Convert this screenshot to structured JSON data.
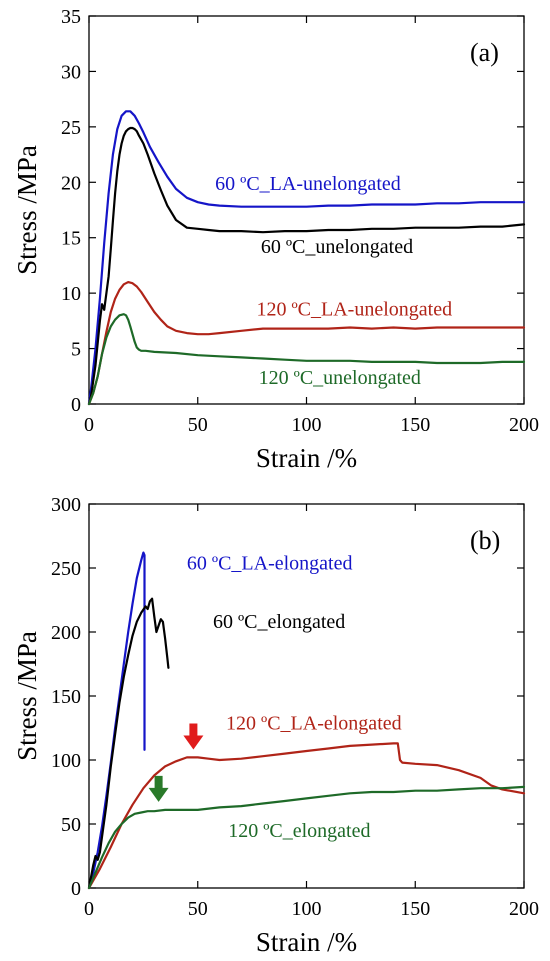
{
  "chart_data": [
    {
      "type": "line",
      "panel_label": "(a)",
      "xlabel": "Strain /%",
      "ylabel": "Stress /MPa",
      "xlim": [
        0,
        200
      ],
      "ylim": [
        0,
        35
      ],
      "xticks": [
        "0",
        "50",
        "100",
        "150",
        "200"
      ],
      "yticks": [
        "0",
        "5",
        "10",
        "15",
        "20",
        "25",
        "30",
        "35"
      ],
      "grid": false,
      "series": [
        {
          "name": "60 ºC_LA-unelongated",
          "color": "#1515c8",
          "x": [
            0,
            1,
            3,
            5,
            7,
            9,
            11,
            13,
            15,
            17,
            19,
            21,
            23,
            25,
            28,
            32,
            36,
            40,
            45,
            50,
            55,
            60,
            70,
            80,
            90,
            100,
            110,
            120,
            130,
            140,
            150,
            160,
            170,
            180,
            190,
            200
          ],
          "y": [
            0,
            1.5,
            5,
            9.5,
            14.5,
            19,
            22.5,
            24.8,
            26,
            26.4,
            26.4,
            26,
            25.3,
            24.5,
            23.2,
            21.8,
            20.5,
            19.4,
            18.6,
            18.2,
            18.0,
            17.9,
            17.8,
            17.8,
            17.8,
            17.8,
            17.9,
            17.9,
            18.0,
            18.0,
            18.0,
            18.1,
            18.1,
            18.2,
            18.2,
            18.2
          ]
        },
        {
          "name": "60 ºC_unelongated",
          "color": "#000000",
          "x": [
            0,
            1,
            3,
            5,
            6,
            7,
            8,
            9,
            10,
            11,
            12,
            13,
            14,
            15,
            16,
            17,
            18,
            19,
            20,
            21,
            22,
            23,
            25,
            27,
            30,
            33,
            36,
            40,
            45,
            50,
            55,
            60,
            70,
            80,
            90,
            100,
            110,
            120,
            130,
            140,
            150,
            160,
            170,
            180,
            190,
            200
          ],
          "y": [
            0,
            0.8,
            3.5,
            7.5,
            9,
            8.5,
            10,
            11.5,
            14,
            16.5,
            19,
            21,
            22.5,
            23.5,
            24.2,
            24.6,
            24.8,
            24.9,
            24.9,
            24.8,
            24.6,
            24.2,
            23.5,
            22.5,
            20.8,
            19.3,
            17.9,
            16.6,
            15.9,
            15.8,
            15.7,
            15.6,
            15.6,
            15.5,
            15.6,
            15.6,
            15.7,
            15.7,
            15.8,
            15.8,
            15.9,
            15.9,
            15.9,
            16.0,
            16.0,
            16.2
          ]
        },
        {
          "name": "120 ºC_LA-unelongated",
          "color": "#b02418",
          "x": [
            0,
            2,
            4,
            6,
            8,
            10,
            12,
            14,
            16,
            18,
            20,
            22,
            24,
            27,
            30,
            33,
            36,
            40,
            45,
            50,
            55,
            60,
            70,
            80,
            90,
            100,
            110,
            120,
            130,
            140,
            150,
            160,
            170,
            180,
            190,
            200
          ],
          "y": [
            0,
            1,
            2.5,
            4.5,
            6.5,
            8.3,
            9.5,
            10.3,
            10.8,
            11.0,
            10.9,
            10.6,
            10.1,
            9.2,
            8.3,
            7.6,
            7.0,
            6.6,
            6.4,
            6.3,
            6.3,
            6.4,
            6.6,
            6.8,
            6.8,
            6.8,
            6.8,
            6.9,
            6.8,
            6.9,
            6.8,
            6.9,
            6.9,
            6.9,
            6.9,
            6.9
          ]
        },
        {
          "name": "120 ºC_unelongated",
          "color": "#1e6a28",
          "x": [
            0,
            2,
            4,
            6,
            8,
            10,
            12,
            14,
            16,
            17,
            18,
            19,
            20,
            21,
            22,
            23,
            24,
            26,
            30,
            40,
            50,
            60,
            70,
            80,
            90,
            100,
            110,
            120,
            130,
            140,
            150,
            160,
            170,
            180,
            190,
            200
          ],
          "y": [
            0,
            1,
            2.5,
            4.5,
            6,
            7,
            7.6,
            8.0,
            8.1,
            8.0,
            7.6,
            7.0,
            6.3,
            5.6,
            5.1,
            4.9,
            4.8,
            4.8,
            4.7,
            4.6,
            4.4,
            4.3,
            4.2,
            4.1,
            4.0,
            3.9,
            3.9,
            3.9,
            3.8,
            3.8,
            3.8,
            3.7,
            3.7,
            3.7,
            3.8,
            3.8
          ]
        }
      ],
      "annotations": [
        {
          "text": "60 ºC_LA-unelongated",
          "color": "#1515c8",
          "x": 58,
          "y": 19.3
        },
        {
          "text": "60 ºC_unelongated",
          "color": "#000000",
          "x": 79,
          "y": 13.6
        },
        {
          "text": "120 ºC_LA-unelongated",
          "color": "#b02418",
          "x": 77,
          "y": 8.0
        },
        {
          "text": "120 ºC_unelongated",
          "color": "#1e6a28",
          "x": 78,
          "y": 1.8
        }
      ]
    },
    {
      "type": "line",
      "panel_label": "(b)",
      "xlabel": "Strain /%",
      "ylabel": "Stress /MPa",
      "xlim": [
        0,
        200
      ],
      "ylim": [
        0,
        300
      ],
      "xticks": [
        "0",
        "50",
        "100",
        "150",
        "200"
      ],
      "yticks": [
        "0",
        "50",
        "100",
        "150",
        "200",
        "250",
        "300"
      ],
      "grid": false,
      "series": [
        {
          "name": "60 ºC_LA-elongated",
          "color": "#1515c8",
          "x": [
            0,
            2,
            4,
            6,
            8,
            10,
            12,
            14,
            16,
            18,
            20,
            22,
            24,
            25,
            25.5,
            25.5
          ],
          "y": [
            0,
            12,
            28,
            48,
            72,
            98,
            125,
            150,
            175,
            200,
            222,
            242,
            256,
            262,
            260,
            108
          ]
        },
        {
          "name": "60 ºC_elongated",
          "color": "#000000",
          "x": [
            0,
            2,
            3,
            4,
            5,
            6,
            8,
            10,
            12,
            14,
            16,
            18,
            20,
            22,
            24,
            26,
            27,
            28,
            29,
            30,
            31,
            32,
            33,
            34,
            35,
            36,
            36.5
          ],
          "y": [
            0,
            18,
            25,
            22,
            28,
            40,
            65,
            95,
            120,
            145,
            165,
            182,
            197,
            208,
            215,
            220,
            218,
            224,
            226,
            212,
            200,
            205,
            210,
            208,
            195,
            180,
            172
          ]
        },
        {
          "name": "120 ºC_LA-elongated",
          "color": "#b02418",
          "x": [
            0,
            5,
            10,
            15,
            20,
            25,
            30,
            35,
            40,
            45,
            50,
            55,
            60,
            70,
            80,
            90,
            100,
            110,
            120,
            130,
            140,
            142,
            143,
            144,
            150,
            160,
            170,
            180,
            185,
            190,
            200
          ],
          "y": [
            0,
            15,
            32,
            50,
            65,
            78,
            88,
            95,
            99,
            102,
            102,
            101,
            100,
            101,
            103,
            105,
            107,
            109,
            111,
            112,
            113,
            113,
            100,
            98,
            97,
            96,
            92,
            86,
            80,
            77,
            74
          ]
        },
        {
          "name": "120 ºC_elongated",
          "color": "#1e6a28",
          "x": [
            0,
            3,
            6,
            9,
            12,
            15,
            18,
            21,
            24,
            27,
            30,
            35,
            40,
            50,
            60,
            70,
            80,
            90,
            100,
            110,
            120,
            130,
            140,
            150,
            160,
            170,
            180,
            190,
            200
          ],
          "y": [
            0,
            12,
            24,
            35,
            44,
            50,
            55,
            58,
            59,
            60,
            60,
            61,
            61,
            61,
            63,
            64,
            66,
            68,
            70,
            72,
            74,
            75,
            75,
            76,
            76,
            77,
            78,
            78,
            79
          ]
        }
      ],
      "annotations": [
        {
          "text": "60 ºC_LA-elongated",
          "color": "#1515c8",
          "x": 45,
          "y": 249
        },
        {
          "text": "60 ºC_elongated",
          "color": "#000000",
          "x": 57,
          "y": 203
        },
        {
          "text": "120 ºC_LA-elongated",
          "color": "#b02418",
          "x": 63,
          "y": 124
        },
        {
          "text": "120 ºC_elongated",
          "color": "#1e6a28",
          "x": 64,
          "y": 40
        }
      ],
      "arrows": [
        {
          "color": "#e01c1c",
          "x": 48,
          "y": 102,
          "direction": "down"
        },
        {
          "color": "#2a7a2a",
          "x": 32,
          "y": 61,
          "direction": "down"
        }
      ]
    }
  ]
}
